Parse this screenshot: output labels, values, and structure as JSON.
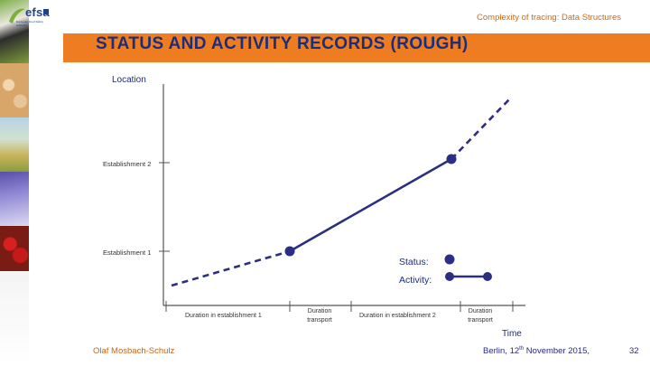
{
  "header": {
    "logo_text": "efsa",
    "logo_subtitle": "European Food Safety Authority",
    "section_title": "Complexity of tracing: Data Structures"
  },
  "slide": {
    "title": "STATUS AND ACTIVITY RECORDS (ROUGH)"
  },
  "diagram": {
    "y_axis_label": "Location",
    "x_axis_label": "Time",
    "y_ticks": [
      "Establishment 2",
      "Establishment 1"
    ],
    "x_segments": [
      [
        "Duration in establishment 1"
      ],
      [
        "Duration",
        "transport"
      ],
      [
        "Duration in establishment 2"
      ],
      [
        "Duration",
        "transport"
      ]
    ],
    "legend": {
      "status_label": "Status:",
      "activity_label": "Activity:"
    },
    "line_color": "#2b2e83",
    "axis_color": "#555555"
  },
  "footer": {
    "author": "Olaf Mosbach-Schulz",
    "location_date_prefix": "Berlin, 12",
    "location_date_sup": "th",
    "location_date_suffix": " November 2015,",
    "page_number": "32"
  },
  "colors": {
    "accent_orange": "#ee7d22",
    "title_blue": "#1c2d7a"
  }
}
